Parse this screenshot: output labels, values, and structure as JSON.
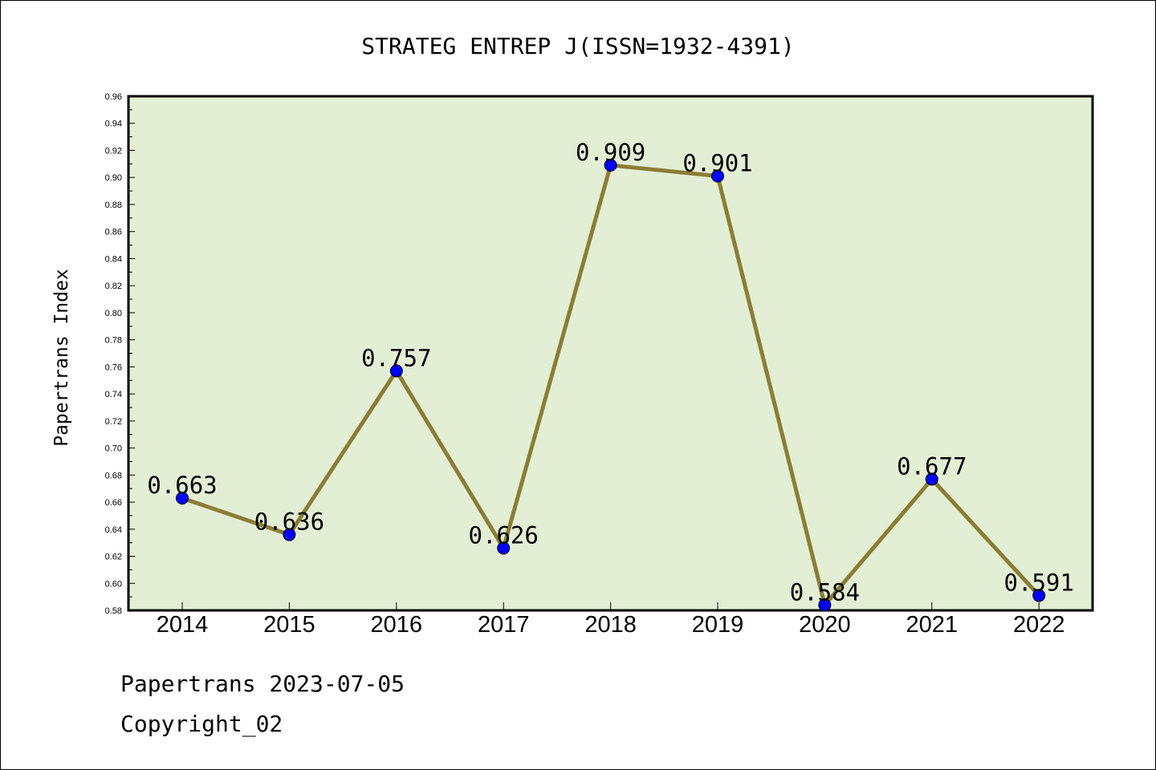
{
  "chart_data": {
    "type": "line",
    "title": "STRATEG ENTREP J(ISSN=1932-4391)",
    "xlabel": "",
    "ylabel": "Papertrans Index",
    "x": [
      "2014",
      "2015",
      "2016",
      "2017",
      "2018",
      "2019",
      "2020",
      "2021",
      "2022"
    ],
    "values": [
      0.663,
      0.636,
      0.757,
      0.626,
      0.909,
      0.901,
      0.584,
      0.677,
      0.591
    ],
    "data_labels": [
      "0.663",
      "0.636",
      "0.757",
      "0.626",
      "0.909",
      "0.901",
      "0.584",
      "0.677",
      "0.591"
    ],
    "ylim": [
      0.58,
      0.96
    ],
    "yticks": [
      "0.58",
      "0.60",
      "0.62",
      "0.64",
      "0.66",
      "0.68",
      "0.70",
      "0.72",
      "0.74",
      "0.76",
      "0.78",
      "0.80",
      "0.82",
      "0.84",
      "0.86",
      "0.88",
      "0.90",
      "0.92",
      "0.94",
      "0.96"
    ],
    "grid": false,
    "colors": {
      "plot_background": "#e2efd5",
      "line": "#8b7d35",
      "marker": "#0000ff"
    }
  },
  "footer": {
    "line1": "Papertrans 2023-07-05",
    "line2": "Copyright_02"
  }
}
